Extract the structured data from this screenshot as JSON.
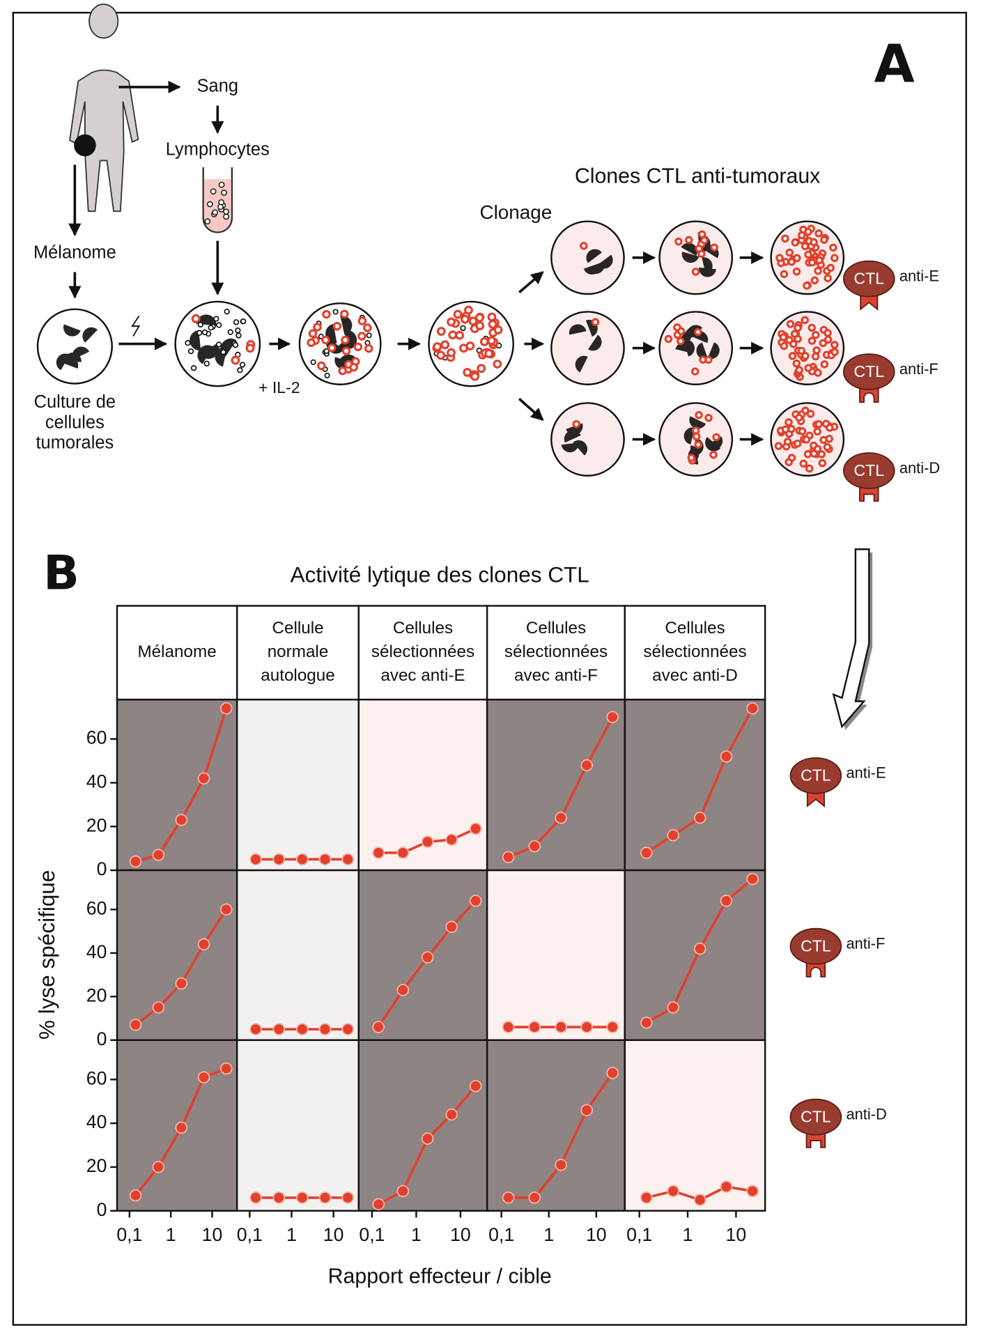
{
  "panel_a": {
    "label": "A",
    "sang": "Sang",
    "lymphocytes": "Lymphocytes",
    "melanome": "Mélanome",
    "culture": [
      "Culture de",
      "cellules",
      "tumorales"
    ],
    "il2": "+ IL-2",
    "clonage": "Clonage",
    "clones_title": "Clones CTL anti-tumoraux"
  },
  "badge": "CTL",
  "panel_b_label": "B",
  "chart_data": {
    "type": "line",
    "title": "Activité lytique des clones CTL",
    "xlabel": "Rapport effecteur / cible",
    "ylabel": "% lyse spécifique",
    "columns": [
      [
        "Mélanome"
      ],
      [
        "Cellule",
        "normale",
        "autologue"
      ],
      [
        "Cellules",
        "sélectionnées",
        "avec anti-E"
      ],
      [
        "Cellules",
        "sélectionnées",
        "avec anti-F"
      ],
      [
        "Cellules",
        "sélectionnées",
        "avec anti-D"
      ]
    ],
    "rows": [
      "anti-E",
      "anti-F",
      "anti-D"
    ],
    "x": [
      0.14,
      0.5,
      1.8,
      6.3,
      22
    ],
    "xlog": true,
    "xlim": [
      0.05,
      40
    ],
    "xticks": [
      {
        "value": 0.1,
        "label": "0,1"
      },
      1,
      10
    ],
    "ylim": [
      0,
      78
    ],
    "yticks": [
      0,
      20,
      40,
      60
    ],
    "color": "#e2402c",
    "backgrounds": [
      [
        "#8e8484",
        "#f2f1f0",
        "#fcf1ee",
        "#8e8484",
        "#8e8484"
      ],
      [
        "#8e8484",
        "#f2f1f0",
        "#8e8484",
        "#fcf1ee",
        "#8e8484"
      ],
      [
        "#8e8484",
        "#f2f1f0",
        "#8e8484",
        "#8e8484",
        "#fcf1ee"
      ]
    ],
    "panels": [
      [
        [
          4,
          7,
          23,
          42,
          74
        ],
        [
          5,
          5,
          5,
          5,
          5
        ],
        [
          8,
          8,
          13,
          14,
          19
        ],
        [
          6,
          11,
          24,
          48,
          70
        ],
        [
          8,
          16,
          24,
          52,
          74
        ]
      ],
      [
        [
          7,
          15,
          26,
          44,
          60
        ],
        [
          5,
          5,
          5,
          5,
          5
        ],
        [
          6,
          23,
          38,
          52,
          64
        ],
        [
          6,
          6,
          6,
          6,
          6
        ],
        [
          8,
          15,
          42,
          64,
          74
        ]
      ],
      [
        [
          7,
          20,
          38,
          61,
          65
        ],
        [
          6,
          6,
          6,
          6,
          6
        ],
        [
          3,
          9,
          33,
          44,
          57
        ],
        [
          6,
          6,
          21,
          46,
          63
        ],
        [
          6,
          9,
          5,
          11,
          9
        ]
      ]
    ]
  }
}
